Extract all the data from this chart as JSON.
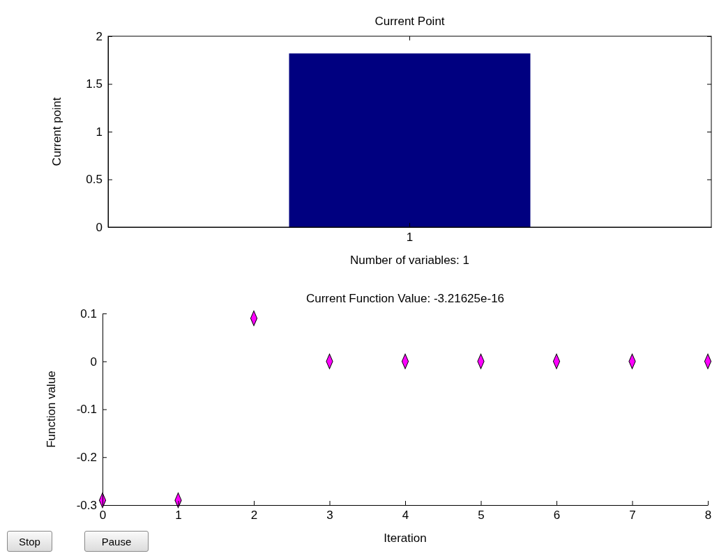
{
  "chart_data": [
    {
      "type": "bar",
      "title": "Current Point",
      "xlabel": "Number of variables: 1",
      "ylabel": "Current point",
      "categories": [
        "1"
      ],
      "values": [
        1.82
      ],
      "color": "#000080",
      "ylim": [
        0,
        2
      ],
      "yticks": [
        0,
        0.5,
        1,
        1.5,
        2
      ],
      "grid": false
    },
    {
      "type": "scatter",
      "title": "Current Function Value: -3.21625e-16",
      "xlabel": "Iteration",
      "ylabel": "Function value",
      "x": [
        0,
        1,
        2,
        3,
        4,
        5,
        6,
        7,
        8
      ],
      "values": [
        -0.29,
        -0.29,
        0.09,
        0,
        0,
        0,
        0,
        0,
        0
      ],
      "color": "#ff00ff",
      "marker": "diamond",
      "xlim": [
        0,
        8
      ],
      "xticks": [
        0,
        1,
        2,
        3,
        4,
        5,
        6,
        7,
        8
      ],
      "ylim": [
        -0.3,
        0.1
      ],
      "yticks": [
        -0.3,
        -0.2,
        -0.1,
        0,
        0.1
      ],
      "grid": false,
      "annotations": [
        "Stop",
        "Pause"
      ]
    }
  ]
}
